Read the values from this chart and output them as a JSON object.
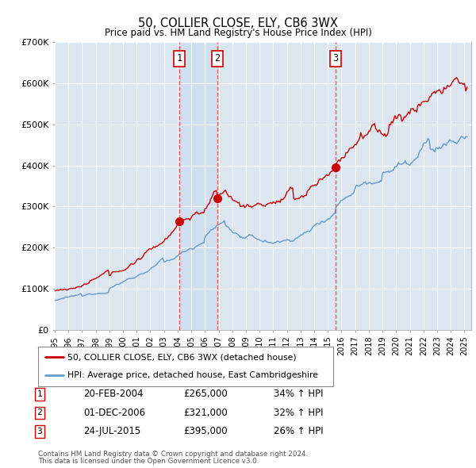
{
  "title": "50, COLLIER CLOSE, ELY, CB6 3WX",
  "subtitle": "Price paid vs. HM Land Registry's House Price Index (HPI)",
  "legend_line1": "50, COLLIER CLOSE, ELY, CB6 3WX (detached house)",
  "legend_line2": "HPI: Average price, detached house, East Cambridgeshire",
  "footer1": "Contains HM Land Registry data © Crown copyright and database right 2024.",
  "footer2": "This data is licensed under the Open Government Licence v3.0.",
  "transactions": [
    {
      "num": 1,
      "date": "20-FEB-2004",
      "price": 265000,
      "hpi_change": "34% ↑ HPI",
      "year": 2004.13
    },
    {
      "num": 2,
      "date": "01-DEC-2006",
      "price": 321000,
      "hpi_change": "32% ↑ HPI",
      "year": 2006.92
    },
    {
      "num": 3,
      "date": "24-JUL-2015",
      "price": 395000,
      "hpi_change": "26% ↑ HPI",
      "year": 2015.56
    }
  ],
  "hpi_color": "#6699cc",
  "price_color": "#cc0000",
  "vline_color": "#ff4444",
  "shade_color": "#ccddf0",
  "background_color": "#dce6f1",
  "ylim": [
    0,
    700000
  ],
  "yticks": [
    0,
    100000,
    200000,
    300000,
    400000,
    500000,
    600000,
    700000
  ],
  "ytick_labels": [
    "£0",
    "£100K",
    "£200K",
    "£300K",
    "£400K",
    "£500K",
    "£600K",
    "£700K"
  ],
  "xmin": 1995.0,
  "xmax": 2025.5
}
